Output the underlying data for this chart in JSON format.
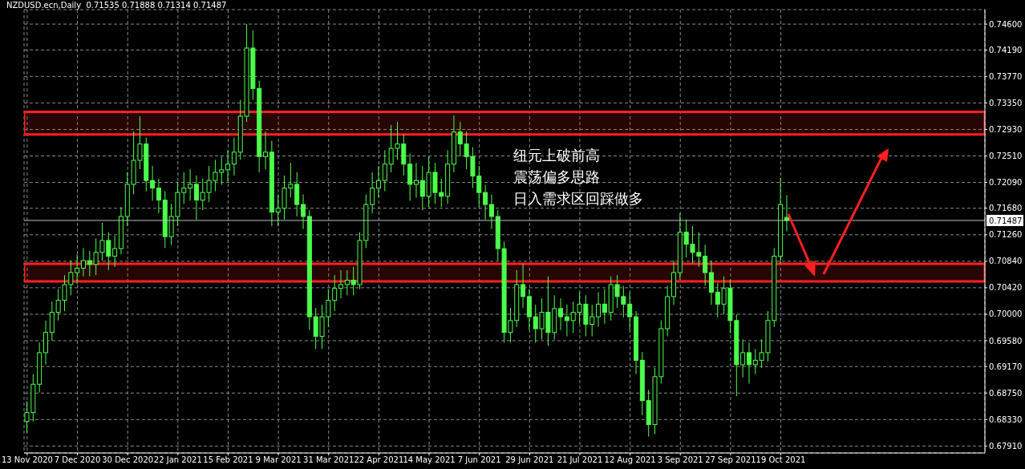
{
  "chart_data": {
    "type": "candlestick",
    "title": "NZDUSD.ecn,Daily  0.71535 0.71888 0.71314 0.71487",
    "categories": [
      "13 Nov 2020",
      null,
      null,
      null,
      null,
      null,
      null,
      null,
      "7 Dec 2020",
      null,
      null,
      null,
      null,
      null,
      null,
      null,
      "30 Dec 2020",
      null,
      null,
      null,
      null,
      null,
      null,
      null,
      "22 Jan 2021",
      null,
      null,
      null,
      null,
      null,
      null,
      null,
      "15 Feb 2021",
      null,
      null,
      null,
      null,
      null,
      null,
      null,
      "9 Mar 2021",
      null,
      null,
      null,
      null,
      null,
      null,
      null,
      "31 Mar 2021",
      null,
      null,
      null,
      null,
      null,
      null,
      null,
      "22 Apr 2021",
      null,
      null,
      null,
      null,
      null,
      null,
      null,
      "14 May 2021",
      null,
      null,
      null,
      null,
      null,
      null,
      null,
      "7 Jun 2021",
      null,
      null,
      null,
      null,
      null,
      null,
      null,
      "29 Jun 2021",
      null,
      null,
      null,
      null,
      null,
      null,
      null,
      "21 Jul 2021",
      null,
      null,
      null,
      null,
      null,
      null,
      null,
      "12 Aug 2021",
      null,
      null,
      null,
      null,
      null,
      null,
      null,
      "3 Sep 2021",
      null,
      null,
      null,
      null,
      null,
      null,
      null,
      "27 Sep 2021",
      null,
      null,
      null,
      null,
      null,
      null,
      null,
      "19 Oct 2021",
      null,
      null,
      null,
      null,
      null,
      null,
      null,
      null,
      null,
      null,
      null,
      null,
      null,
      null,
      null,
      null,
      null,
      null,
      null,
      null,
      null,
      null,
      null,
      null,
      null,
      null,
      null,
      null,
      null,
      null,
      null,
      null
    ],
    "color": "#4cff4c",
    "ohlc": [
      [
        0.683,
        0.6862,
        0.6812,
        0.6844
      ],
      [
        0.6844,
        0.6905,
        0.683,
        0.6889
      ],
      [
        0.6889,
        0.6955,
        0.6876,
        0.6939
      ],
      [
        0.6939,
        0.699,
        0.692,
        0.6971
      ],
      [
        0.6971,
        0.702,
        0.6958,
        0.7003
      ],
      [
        0.7003,
        0.704,
        0.699,
        0.7022
      ],
      [
        0.7022,
        0.7062,
        0.7005,
        0.7047
      ],
      [
        0.7047,
        0.7085,
        0.703,
        0.7066
      ],
      [
        0.7066,
        0.7095,
        0.7048,
        0.7073
      ],
      [
        0.7073,
        0.7105,
        0.706,
        0.7085
      ],
      [
        0.7085,
        0.71,
        0.706,
        0.7079
      ],
      [
        0.7079,
        0.712,
        0.7062,
        0.7098
      ],
      [
        0.7098,
        0.7145,
        0.7085,
        0.7117
      ],
      [
        0.7117,
        0.713,
        0.707,
        0.7092
      ],
      [
        0.7092,
        0.7125,
        0.7075,
        0.7104
      ],
      [
        0.7104,
        0.717,
        0.7095,
        0.7155
      ],
      [
        0.7155,
        0.7225,
        0.714,
        0.7206
      ],
      [
        0.7206,
        0.729,
        0.719,
        0.7244
      ],
      [
        0.7244,
        0.7314,
        0.723,
        0.727
      ],
      [
        0.727,
        0.728,
        0.7195,
        0.7212
      ],
      [
        0.7212,
        0.7235,
        0.718,
        0.72
      ],
      [
        0.72,
        0.7215,
        0.716,
        0.7181
      ],
      [
        0.7181,
        0.7195,
        0.7105,
        0.7123
      ],
      [
        0.7123,
        0.7175,
        0.711,
        0.7155
      ],
      [
        0.7155,
        0.721,
        0.714,
        0.7193
      ],
      [
        0.7193,
        0.7225,
        0.7175,
        0.72
      ],
      [
        0.72,
        0.723,
        0.718,
        0.7206
      ],
      [
        0.7206,
        0.722,
        0.715,
        0.7181
      ],
      [
        0.7181,
        0.7215,
        0.7165,
        0.7193
      ],
      [
        0.7193,
        0.7235,
        0.7178,
        0.7212
      ],
      [
        0.7212,
        0.7245,
        0.7195,
        0.7225
      ],
      [
        0.7225,
        0.725,
        0.7205,
        0.7229
      ],
      [
        0.7229,
        0.726,
        0.721,
        0.7238
      ],
      [
        0.7238,
        0.728,
        0.722,
        0.7257
      ],
      [
        0.7257,
        0.734,
        0.7245,
        0.7314
      ],
      [
        0.7314,
        0.746,
        0.7305,
        0.7422
      ],
      [
        0.7422,
        0.745,
        0.734,
        0.7358
      ],
      [
        0.7358,
        0.737,
        0.7225,
        0.725
      ],
      [
        0.725,
        0.729,
        0.723,
        0.7257
      ],
      [
        0.7257,
        0.7275,
        0.714,
        0.7162
      ],
      [
        0.7162,
        0.719,
        0.714,
        0.7168
      ],
      [
        0.7168,
        0.722,
        0.715,
        0.72
      ],
      [
        0.72,
        0.724,
        0.7185,
        0.7206
      ],
      [
        0.7206,
        0.7225,
        0.7155,
        0.7174
      ],
      [
        0.7174,
        0.719,
        0.7135,
        0.7155
      ],
      [
        0.7155,
        0.7165,
        0.6975,
        0.6996
      ],
      [
        0.6996,
        0.701,
        0.6945,
        0.6965
      ],
      [
        0.6965,
        0.7015,
        0.6945,
        0.6996
      ],
      [
        0.6996,
        0.704,
        0.698,
        0.7022
      ],
      [
        0.7022,
        0.7062,
        0.7005,
        0.7041
      ],
      [
        0.7041,
        0.707,
        0.7025,
        0.7047
      ],
      [
        0.7047,
        0.707,
        0.703,
        0.7054
      ],
      [
        0.7054,
        0.7075,
        0.703,
        0.7047
      ],
      [
        0.7047,
        0.713,
        0.704,
        0.7117
      ],
      [
        0.7117,
        0.719,
        0.7105,
        0.7174
      ],
      [
        0.7174,
        0.7225,
        0.716,
        0.72
      ],
      [
        0.72,
        0.7235,
        0.7185,
        0.7212
      ],
      [
        0.7212,
        0.726,
        0.7195,
        0.7238
      ],
      [
        0.7238,
        0.73,
        0.7225,
        0.7263
      ],
      [
        0.7263,
        0.7305,
        0.7245,
        0.727
      ],
      [
        0.727,
        0.7285,
        0.722,
        0.7238
      ],
      [
        0.7238,
        0.7255,
        0.718,
        0.7206
      ],
      [
        0.7206,
        0.724,
        0.7185,
        0.7212
      ],
      [
        0.7212,
        0.7235,
        0.7165,
        0.7187
      ],
      [
        0.7187,
        0.725,
        0.717,
        0.7225
      ],
      [
        0.7225,
        0.724,
        0.7175,
        0.7193
      ],
      [
        0.7193,
        0.7215,
        0.717,
        0.7187
      ],
      [
        0.7187,
        0.726,
        0.7175,
        0.7238
      ],
      [
        0.7238,
        0.7315,
        0.7225,
        0.7289
      ],
      [
        0.7289,
        0.7305,
        0.725,
        0.727
      ],
      [
        0.727,
        0.729,
        0.723,
        0.725
      ],
      [
        0.725,
        0.7265,
        0.72,
        0.7219
      ],
      [
        0.7219,
        0.7235,
        0.717,
        0.7193
      ],
      [
        0.7193,
        0.7205,
        0.715,
        0.7174
      ],
      [
        0.7174,
        0.719,
        0.7135,
        0.7155
      ],
      [
        0.7155,
        0.7165,
        0.7085,
        0.7104
      ],
      [
        0.7104,
        0.7115,
        0.6955,
        0.6971
      ],
      [
        0.6971,
        0.701,
        0.6955,
        0.699
      ],
      [
        0.699,
        0.707,
        0.698,
        0.7047
      ],
      [
        0.7047,
        0.708,
        0.701,
        0.7028
      ],
      [
        0.7028,
        0.704,
        0.6975,
        0.6996
      ],
      [
        0.6996,
        0.7015,
        0.6955,
        0.6977
      ],
      [
        0.6977,
        0.7025,
        0.696,
        0.7003
      ],
      [
        0.7003,
        0.706,
        0.695,
        0.6971
      ],
      [
        0.6971,
        0.703,
        0.696,
        0.7009
      ],
      [
        0.7009,
        0.7025,
        0.6975,
        0.6996
      ],
      [
        0.6996,
        0.7015,
        0.6965,
        0.699
      ],
      [
        0.699,
        0.702,
        0.697,
        0.7003
      ],
      [
        0.7003,
        0.7035,
        0.6985,
        0.7016
      ],
      [
        0.7016,
        0.703,
        0.6965,
        0.6984
      ],
      [
        0.6984,
        0.7015,
        0.6965,
        0.6996
      ],
      [
        0.6996,
        0.7035,
        0.698,
        0.7016
      ],
      [
        0.7016,
        0.704,
        0.6985,
        0.7003
      ],
      [
        0.7003,
        0.706,
        0.699,
        0.7047
      ],
      [
        0.7047,
        0.7062,
        0.701,
        0.7028
      ],
      [
        0.7028,
        0.7045,
        0.6995,
        0.7016
      ],
      [
        0.7016,
        0.7035,
        0.6975,
        0.6996
      ],
      [
        0.6996,
        0.7005,
        0.6905,
        0.6927
      ],
      [
        0.6927,
        0.694,
        0.684,
        0.6863
      ],
      [
        0.6863,
        0.688,
        0.6806,
        0.6825
      ],
      [
        0.6825,
        0.6915,
        0.681,
        0.6901
      ],
      [
        0.6901,
        0.699,
        0.689,
        0.6977
      ],
      [
        0.6977,
        0.7045,
        0.6965,
        0.7028
      ],
      [
        0.7028,
        0.7085,
        0.7015,
        0.7066
      ],
      [
        0.7066,
        0.716,
        0.7055,
        0.713
      ],
      [
        0.713,
        0.715,
        0.709,
        0.7111
      ],
      [
        0.7111,
        0.714,
        0.708,
        0.7098
      ],
      [
        0.7098,
        0.713,
        0.7075,
        0.7092
      ],
      [
        0.7092,
        0.711,
        0.7045,
        0.7066
      ],
      [
        0.7066,
        0.7085,
        0.7015,
        0.7035
      ],
      [
        0.7035,
        0.705,
        0.6995,
        0.7016
      ],
      [
        0.7016,
        0.706,
        0.7,
        0.7041
      ],
      [
        0.7041,
        0.7055,
        0.697,
        0.699
      ],
      [
        0.699,
        0.7,
        0.687,
        0.692
      ],
      [
        0.692,
        0.696,
        0.69,
        0.6939
      ],
      [
        0.6939,
        0.6955,
        0.689,
        0.692
      ],
      [
        0.692,
        0.6945,
        0.6905,
        0.6927
      ],
      [
        0.6927,
        0.696,
        0.6915,
        0.6939
      ],
      [
        0.6939,
        0.7005,
        0.6925,
        0.699
      ],
      [
        0.699,
        0.7105,
        0.698,
        0.7092
      ],
      [
        0.7092,
        0.7216,
        0.708,
        0.7174
      ],
      [
        0.71535,
        0.71888,
        0.71314,
        0.71487
      ],
      null,
      null,
      null,
      null,
      null,
      null,
      null,
      null,
      null,
      null,
      null,
      null,
      null,
      null,
      null,
      null,
      null,
      null,
      null,
      null,
      null,
      null,
      null,
      null,
      null,
      null,
      null,
      null,
      null,
      null,
      null
    ],
    "ylim": [
      0.678,
      0.7483
    ],
    "yticks": [
      {
        "value": 0.746,
        "label": "0.74600"
      },
      {
        "value": 0.7419,
        "label": "0.74190"
      },
      {
        "value": 0.7377,
        "label": "0.73770"
      },
      {
        "value": 0.7335,
        "label": "0.73350"
      },
      {
        "value": 0.7293,
        "label": "0.72930"
      },
      {
        "value": 0.7251,
        "label": "0.72510"
      },
      {
        "value": 0.7209,
        "label": "0.72090"
      },
      {
        "value": 0.7168,
        "label": "0.71680"
      },
      {
        "value": 0.7126,
        "label": "0.71260"
      },
      {
        "value": 0.7084,
        "label": "0.70840"
      },
      {
        "value": 0.7042,
        "label": "0.70420"
      },
      {
        "value": 0.7,
        "label": "0.70000"
      },
      {
        "value": 0.6958,
        "label": "0.69580"
      },
      {
        "value": 0.6917,
        "label": "0.69170"
      },
      {
        "value": 0.6875,
        "label": "0.68750"
      },
      {
        "value": 0.6833,
        "label": "0.68330"
      },
      {
        "value": 0.6791,
        "label": "0.67910"
      }
    ],
    "grid": true,
    "ref_lines": [
      {
        "axis": "y",
        "value": 0.71487,
        "label": "0.71487",
        "color": "#c0c0c0"
      }
    ],
    "bands": [
      {
        "axis": "y",
        "from": 0.7285,
        "to": 0.7321,
        "color": "#ff2020"
      },
      {
        "axis": "y",
        "from": 0.7052,
        "to": 0.708,
        "color": "#ff2020"
      }
    ],
    "annotations": [
      "纽元上破前高",
      "震荡偏多思路",
      "日入需求区回踩做多"
    ]
  }
}
